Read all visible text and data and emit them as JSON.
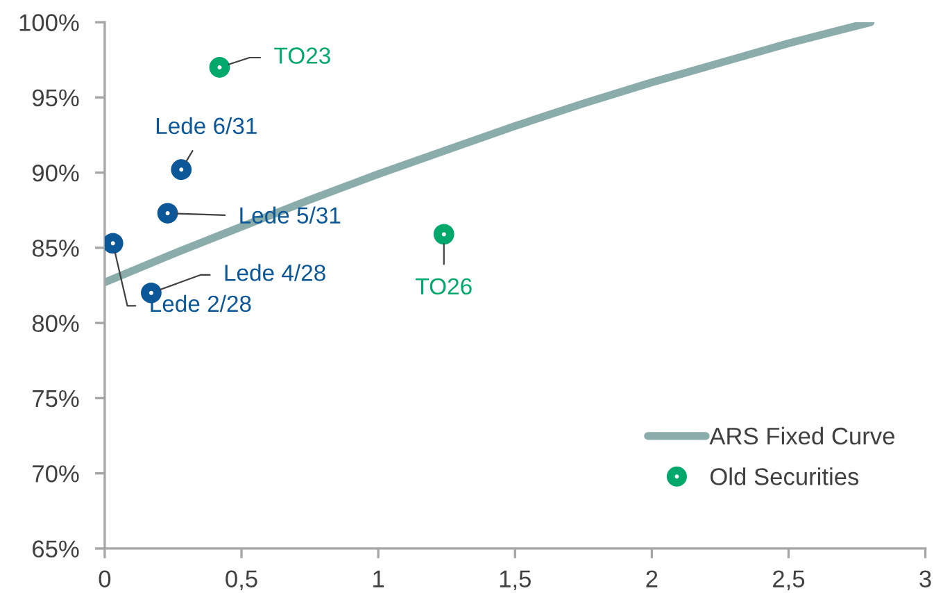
{
  "chart_data": {
    "type": "scatter",
    "xlim": [
      0,
      3
    ],
    "xticks": [
      0,
      {
        "value": 0.5,
        "label": "0,5"
      },
      1,
      {
        "value": 1.5,
        "label": "1,5"
      },
      2,
      {
        "value": 2.5,
        "label": "2,5"
      },
      3
    ],
    "ylim": [
      65,
      100
    ],
    "yticks": [
      {
        "value": 65,
        "label": "65%"
      },
      {
        "value": 70,
        "label": "70%"
      },
      {
        "value": 75,
        "label": "75%"
      },
      {
        "value": 80,
        "label": "80%"
      },
      {
        "value": 85,
        "label": "85%"
      },
      {
        "value": 90,
        "label": "90%"
      },
      {
        "value": 95,
        "label": "95%"
      },
      {
        "value": 100,
        "label": "100%"
      }
    ],
    "legend": "bottom right",
    "series": [
      {
        "name": "ARS Fixed Curve",
        "type": "line",
        "color": "#8aacab",
        "line_style": "solid",
        "marker": "none",
        "x": [
          0,
          0.25,
          0.5,
          0.75,
          1,
          1.25,
          1.5,
          1.75,
          2,
          2.25,
          2.5,
          2.65,
          2.8
        ],
        "values": [
          82.7,
          84.6,
          86.4,
          88.2,
          89.9,
          91.5,
          93.1,
          94.6,
          96.0,
          97.3,
          98.6,
          99.3,
          100
        ]
      },
      {
        "name": "Old Securities",
        "color": "#00a86b",
        "marker": "circle",
        "x": [
          0.42,
          1.24
        ],
        "values": [
          97.0,
          85.9
        ]
      },
      {
        "color": "#0b5797",
        "marker": "circle",
        "x": [
          0.28,
          0.23,
          0.17,
          0.03
        ],
        "values": [
          90.2,
          87.3,
          82.0,
          85.3
        ]
      }
    ],
    "annotations": [
      {
        "text": "TO23",
        "x": 0.42,
        "y": 97.0
      },
      {
        "text": "Lede 6/31",
        "x": 0.28,
        "y": 90.2
      },
      {
        "text": "Lede 5/31",
        "x": 0.23,
        "y": 87.3
      },
      {
        "text": "Lede 4/28",
        "x": 0.17,
        "y": 82.0
      },
      {
        "text": "Lede 2/28",
        "x": 0.03,
        "y": 85.3
      },
      {
        "text": "TO26",
        "x": 1.24,
        "y": 85.9
      }
    ]
  }
}
